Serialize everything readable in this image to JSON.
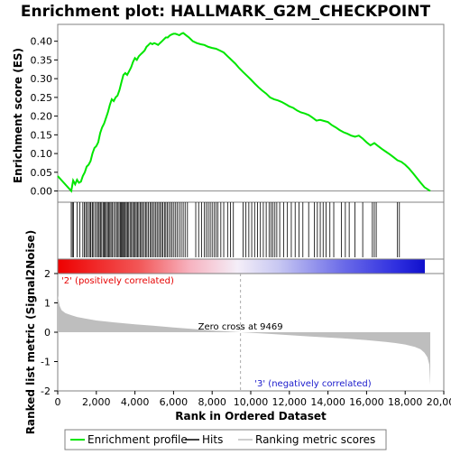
{
  "chart_data": {
    "type": "line",
    "title": "Enrichment plot: HALLMARK_G2M_CHECKPOINT",
    "xlabel": "Rank in Ordered Dataset",
    "ylabel_es": "Enrichment score (ES)",
    "ylabel_metric": "Ranked list metric (Signal2Noise)",
    "xlim": [
      0,
      20000
    ],
    "es_ylim": [
      -0.03,
      0.445
    ],
    "metric_ylim": [
      -2,
      2
    ],
    "grid": false,
    "x_ticks": [
      0,
      2000,
      4000,
      6000,
      8000,
      10000,
      12000,
      14000,
      16000,
      18000,
      20000
    ],
    "x_tick_labels": [
      "0",
      "2,000",
      "4,000",
      "6,000",
      "8,000",
      "10,000",
      "12,000",
      "14,000",
      "16,000",
      "18,000",
      "20,000"
    ],
    "es_ticks": [
      0.0,
      0.05,
      0.1,
      0.15,
      0.2,
      0.25,
      0.3,
      0.35,
      0.4
    ],
    "es_tick_labels": [
      "0.00",
      "0.05",
      "0.10",
      "0.15",
      "0.20",
      "0.25",
      "0.30",
      "0.35",
      "0.40"
    ],
    "metric_ticks": [
      2,
      1,
      0,
      -1,
      -2
    ],
    "metric_tick_labels": [
      "2",
      "1",
      "0",
      "-1",
      "-2"
    ],
    "total_genes": 19300,
    "series": [
      {
        "name": "Enrichment profile",
        "color": "#00e600",
        "x": [
          0,
          700,
          800,
          900,
          1000,
          1100,
          1200,
          1300,
          1400,
          1500,
          1600,
          1700,
          1800,
          1900,
          2000,
          2100,
          2200,
          2300,
          2400,
          2500,
          2600,
          2700,
          2800,
          2900,
          3000,
          3100,
          3200,
          3300,
          3400,
          3500,
          3600,
          3700,
          3800,
          3900,
          4000,
          4100,
          4200,
          4300,
          4400,
          4500,
          4600,
          4700,
          4800,
          4900,
          5000,
          5100,
          5200,
          5300,
          5400,
          5500,
          5600,
          5700,
          5800,
          5900,
          6000,
          6100,
          6200,
          6300,
          6400,
          6500,
          6600,
          6700,
          6800,
          7000,
          7200,
          7400,
          7600,
          7800,
          8000,
          8200,
          8400,
          8600,
          8800,
          9000,
          9200,
          9400,
          9600,
          9800,
          10000,
          10200,
          10400,
          10600,
          10800,
          11000,
          11200,
          11400,
          11600,
          11800,
          12000,
          12200,
          12400,
          12600,
          12800,
          13000,
          13200,
          13400,
          13600,
          13800,
          14000,
          14200,
          14400,
          14600,
          14800,
          15000,
          15200,
          15400,
          15600,
          15800,
          16000,
          16200,
          16400,
          16600,
          16800,
          17000,
          17200,
          17400,
          17600,
          17800,
          18000,
          18200,
          18400,
          18600,
          18800,
          19000,
          19300
        ],
        "y": [
          0.04,
          0.0,
          0.028,
          0.018,
          0.03,
          0.022,
          0.025,
          0.04,
          0.05,
          0.065,
          0.07,
          0.08,
          0.1,
          0.115,
          0.12,
          0.13,
          0.155,
          0.17,
          0.18,
          0.195,
          0.21,
          0.23,
          0.245,
          0.24,
          0.25,
          0.255,
          0.27,
          0.29,
          0.31,
          0.315,
          0.31,
          0.32,
          0.33,
          0.345,
          0.355,
          0.35,
          0.36,
          0.365,
          0.37,
          0.375,
          0.385,
          0.39,
          0.395,
          0.392,
          0.395,
          0.393,
          0.39,
          0.395,
          0.4,
          0.405,
          0.41,
          0.41,
          0.415,
          0.418,
          0.42,
          0.42,
          0.418,
          0.416,
          0.42,
          0.422,
          0.418,
          0.414,
          0.41,
          0.4,
          0.395,
          0.392,
          0.39,
          0.385,
          0.382,
          0.38,
          0.375,
          0.37,
          0.36,
          0.35,
          0.34,
          0.328,
          0.318,
          0.308,
          0.298,
          0.287,
          0.277,
          0.268,
          0.26,
          0.25,
          0.245,
          0.242,
          0.238,
          0.232,
          0.226,
          0.222,
          0.215,
          0.21,
          0.207,
          0.203,
          0.196,
          0.188,
          0.19,
          0.187,
          0.184,
          0.176,
          0.17,
          0.163,
          0.157,
          0.153,
          0.148,
          0.145,
          0.148,
          0.14,
          0.13,
          0.122,
          0.128,
          0.12,
          0.112,
          0.105,
          0.098,
          0.09,
          0.082,
          0.078,
          0.07,
          0.06,
          0.048,
          0.035,
          0.022,
          0.01,
          0.0
        ]
      }
    ],
    "hits": [
      700,
      760,
      820,
      1000,
      1150,
      1300,
      1380,
      1450,
      1520,
      1600,
      1680,
      1720,
      1800,
      1860,
      1950,
      2020,
      2100,
      2150,
      2220,
      2280,
      2350,
      2400,
      2460,
      2520,
      2580,
      2640,
      2700,
      2760,
      2820,
      2900,
      2980,
      3050,
      3120,
      3180,
      3250,
      3300,
      3350,
      3400,
      3450,
      3500,
      3560,
      3620,
      3680,
      3750,
      3820,
      3880,
      3950,
      4010,
      4070,
      4130,
      4200,
      4270,
      4340,
      4400,
      4480,
      4550,
      4620,
      4700,
      4780,
      4850,
      4920,
      5000,
      5080,
      5150,
      5230,
      5300,
      5380,
      5450,
      5530,
      5600,
      5680,
      5760,
      5850,
      5930,
      6020,
      6110,
      6200,
      6300,
      6400,
      6500,
      6600,
      6720,
      7150,
      7300,
      7450,
      7600,
      7700,
      7800,
      7900,
      8000,
      8100,
      8200,
      8300,
      8450,
      8600,
      8800,
      8950,
      9100,
      9600,
      9750,
      9900,
      10050,
      10200,
      10350,
      10500,
      10650,
      10800,
      10950,
      11050,
      11150,
      11250,
      11350,
      11500,
      11700,
      11900,
      12100,
      12300,
      12500,
      12700,
      13000,
      13300,
      13450,
      13600,
      13750,
      13900,
      14100,
      14300,
      14700,
      14900,
      15100,
      15400,
      15800,
      16300,
      16400,
      16500,
      17600,
      17700
    ],
    "metric": {
      "name": "Ranking metric scores",
      "x": [
        0,
        100,
        200,
        400,
        700,
        1000,
        1500,
        2000,
        3000,
        4000,
        5000,
        6000,
        7000,
        8000,
        9000,
        9469,
        10000,
        11000,
        12000,
        13000,
        14000,
        15000,
        16000,
        17000,
        17500,
        18000,
        18500,
        18800,
        19000,
        19150,
        19250,
        19300
      ],
      "y": [
        1.25,
        0.9,
        0.75,
        0.65,
        0.58,
        0.52,
        0.46,
        0.4,
        0.33,
        0.27,
        0.22,
        0.16,
        0.11,
        0.06,
        0.02,
        0.0,
        -0.02,
        -0.06,
        -0.1,
        -0.14,
        -0.18,
        -0.22,
        -0.27,
        -0.33,
        -0.37,
        -0.42,
        -0.5,
        -0.58,
        -0.7,
        -0.85,
        -1.1,
        -1.8
      ]
    },
    "annotations": {
      "positive": "'2' (positively correlated)",
      "negative": "'3' (negatively correlated)",
      "zero_cross_label": "Zero cross at 9469",
      "zero_cross": 9469
    },
    "legend": {
      "placement": "bottom",
      "items": [
        "Enrichment profile",
        "Hits",
        "Ranking metric scores"
      ]
    },
    "colors": {
      "profile": "#00e600",
      "hits": "#000000",
      "metric_fill": "#bebebe",
      "positive_text": "#e60000",
      "negative_text": "#1a1acc",
      "zero_line": "#aaaaaa",
      "frame": "#808080"
    }
  }
}
